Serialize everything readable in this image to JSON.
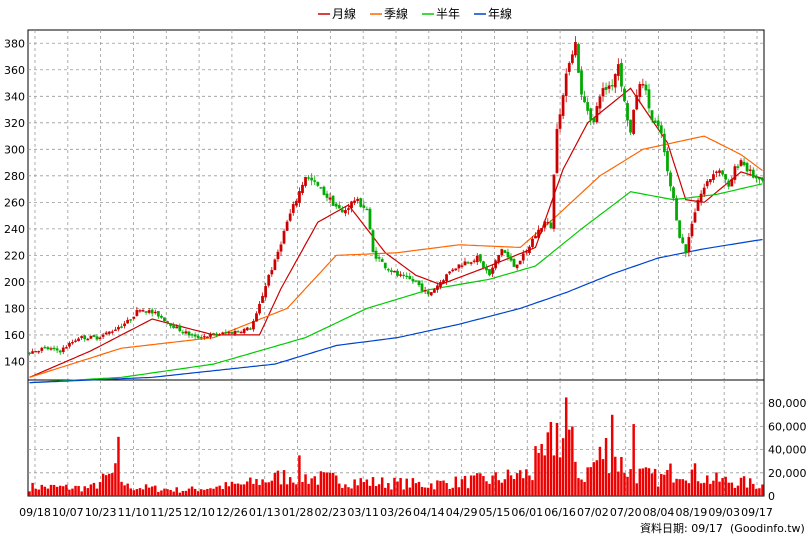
{
  "chart_data": {
    "type": "candlestick+line+bar",
    "legend": [
      {
        "name": "月線",
        "color": "#cc0000"
      },
      {
        "name": "季線",
        "color": "#ff6600"
      },
      {
        "name": "半年",
        "color": "#00cc00"
      },
      {
        "name": "年線",
        "color": "#0044cc"
      }
    ],
    "legend_placement": "top-center",
    "grid": true,
    "price_axis": {
      "ylim": [
        126,
        390
      ],
      "ticks": [
        140,
        160,
        180,
        200,
        220,
        240,
        260,
        280,
        300,
        320,
        340,
        360,
        380
      ],
      "side": "left"
    },
    "volume_axis": {
      "ylim": [
        0,
        100000
      ],
      "ticks": [
        0,
        20000,
        40000,
        60000,
        80000
      ],
      "tick_labels": [
        "0",
        "20,000",
        "40,000",
        "60,000",
        "80,000"
      ],
      "side": "right"
    },
    "x_tick_labels": [
      "09/18",
      "10/07",
      "10/23",
      "11/10",
      "11/25",
      "12/10",
      "12/26",
      "01/13",
      "01/28",
      "02/23",
      "03/11",
      "03/26",
      "04/14",
      "04/29",
      "05/15",
      "06/01",
      "06/16",
      "07/02",
      "07/20",
      "08/04",
      "08/19",
      "09/03",
      "09/17"
    ],
    "num_bars": 240,
    "up_color": "#cc0000",
    "down_color": "#00aa00",
    "price_anchors": [
      [
        0,
        147
      ],
      [
        5,
        150
      ],
      [
        10,
        148
      ],
      [
        16,
        158
      ],
      [
        22,
        158
      ],
      [
        26,
        162
      ],
      [
        32,
        170
      ],
      [
        36,
        180
      ],
      [
        42,
        175
      ],
      [
        48,
        165
      ],
      [
        54,
        158
      ],
      [
        60,
        160
      ],
      [
        66,
        162
      ],
      [
        72,
        165
      ],
      [
        74,
        175
      ],
      [
        78,
        205
      ],
      [
        80,
        215
      ],
      [
        84,
        245
      ],
      [
        88,
        268
      ],
      [
        90,
        280
      ],
      [
        94,
        272
      ],
      [
        98,
        262
      ],
      [
        102,
        252
      ],
      [
        106,
        262
      ],
      [
        110,
        255
      ],
      [
        112,
        222
      ],
      [
        116,
        212
      ],
      [
        120,
        205
      ],
      [
        126,
        200
      ],
      [
        130,
        190
      ],
      [
        134,
        200
      ],
      [
        138,
        210
      ],
      [
        142,
        215
      ],
      [
        146,
        218
      ],
      [
        150,
        205
      ],
      [
        154,
        225
      ],
      [
        158,
        212
      ],
      [
        162,
        222
      ],
      [
        164,
        232
      ],
      [
        168,
        245
      ],
      [
        170,
        242
      ],
      [
        172,
        318
      ],
      [
        174,
        340
      ],
      [
        176,
        368
      ],
      [
        178,
        380
      ],
      [
        180,
        340
      ],
      [
        184,
        320
      ],
      [
        186,
        342
      ],
      [
        190,
        350
      ],
      [
        192,
        365
      ],
      [
        194,
        335
      ],
      [
        196,
        312
      ],
      [
        198,
        342
      ],
      [
        200,
        352
      ],
      [
        203,
        322
      ],
      [
        206,
        312
      ],
      [
        208,
        282
      ],
      [
        210,
        262
      ],
      [
        212,
        235
      ],
      [
        214,
        222
      ],
      [
        216,
        245
      ],
      [
        218,
        262
      ],
      [
        221,
        275
      ],
      [
        224,
        285
      ],
      [
        226,
        282
      ],
      [
        228,
        270
      ],
      [
        230,
        285
      ],
      [
        232,
        292
      ],
      [
        234,
        285
      ],
      [
        236,
        280
      ],
      [
        238,
        275
      ],
      [
        239,
        276
      ]
    ],
    "volume_anchors": [
      [
        0,
        8000
      ],
      [
        20,
        7000
      ],
      [
        28,
        20000
      ],
      [
        32,
        8000
      ],
      [
        50,
        5000
      ],
      [
        70,
        10000
      ],
      [
        85,
        18000
      ],
      [
        95,
        15000
      ],
      [
        110,
        12000
      ],
      [
        130,
        10000
      ],
      [
        150,
        14000
      ],
      [
        165,
        20000
      ],
      [
        172,
        55000
      ],
      [
        176,
        45000
      ],
      [
        180,
        15000
      ],
      [
        188,
        40000
      ],
      [
        196,
        20000
      ],
      [
        206,
        15000
      ],
      [
        212,
        25000
      ],
      [
        222,
        14000
      ],
      [
        232,
        12000
      ],
      [
        239,
        9000
      ]
    ],
    "volume_spikes": [
      [
        29,
        51000
      ],
      [
        88,
        35000
      ],
      [
        175,
        85000
      ],
      [
        177,
        60000
      ],
      [
        190,
        70000
      ],
      [
        197,
        62000
      ],
      [
        165,
        43000
      ],
      [
        168,
        35000
      ]
    ],
    "moving_averages": [
      {
        "name": "月線",
        "anchors": [
          [
            0,
            128
          ],
          [
            20,
            148
          ],
          [
            40,
            172
          ],
          [
            60,
            160
          ],
          [
            75,
            160
          ],
          [
            82,
            195
          ],
          [
            94,
            245
          ],
          [
            104,
            258
          ],
          [
            116,
            222
          ],
          [
            126,
            205
          ],
          [
            134,
            198
          ],
          [
            150,
            212
          ],
          [
            165,
            226
          ],
          [
            174,
            285
          ],
          [
            182,
            320
          ],
          [
            196,
            346
          ],
          [
            208,
            305
          ],
          [
            214,
            262
          ],
          [
            220,
            260
          ],
          [
            232,
            283
          ],
          [
            239,
            278
          ]
        ]
      },
      {
        "name": "季線",
        "anchors": [
          [
            0,
            128
          ],
          [
            30,
            150
          ],
          [
            60,
            158
          ],
          [
            84,
            180
          ],
          [
            100,
            220
          ],
          [
            120,
            222
          ],
          [
            140,
            228
          ],
          [
            160,
            226
          ],
          [
            172,
            250
          ],
          [
            186,
            280
          ],
          [
            200,
            300
          ],
          [
            210,
            305
          ],
          [
            220,
            310
          ],
          [
            232,
            296
          ],
          [
            239,
            284
          ]
        ]
      },
      {
        "name": "半年",
        "anchors": [
          [
            0,
            124
          ],
          [
            30,
            128
          ],
          [
            60,
            138
          ],
          [
            90,
            158
          ],
          [
            110,
            180
          ],
          [
            130,
            194
          ],
          [
            150,
            202
          ],
          [
            165,
            212
          ],
          [
            180,
            240
          ],
          [
            196,
            268
          ],
          [
            210,
            262
          ],
          [
            224,
            266
          ],
          [
            239,
            274
          ]
        ]
      },
      {
        "name": "年線",
        "anchors": [
          [
            0,
            124
          ],
          [
            40,
            128
          ],
          [
            80,
            138
          ],
          [
            100,
            152
          ],
          [
            120,
            158
          ],
          [
            140,
            168
          ],
          [
            160,
            180
          ],
          [
            175,
            192
          ],
          [
            190,
            206
          ],
          [
            205,
            218
          ],
          [
            220,
            225
          ],
          [
            239,
            232
          ]
        ]
      }
    ]
  },
  "footer": {
    "source_label": "資料日期: 09/17",
    "site_label": "(Goodinfo.tw)"
  }
}
